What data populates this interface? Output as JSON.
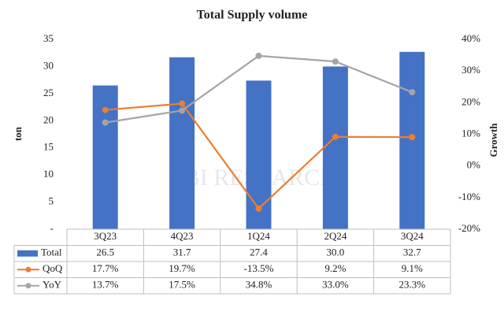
{
  "chart_data": {
    "type": "bar",
    "title": "Total Supply volume",
    "ylabel": "ton",
    "y2label": "Growth",
    "watermark": "UBI RESEARCH",
    "categories": [
      "3Q23",
      "4Q23",
      "1Q24",
      "2Q24",
      "3Q24"
    ],
    "ylim": [
      0,
      35
    ],
    "yticks": [
      {
        "value": 0,
        "label": "-"
      },
      5,
      10,
      15,
      20,
      25,
      30,
      35
    ],
    "y2lim": [
      -20,
      40
    ],
    "y2ticks": [
      {
        "value": -20,
        "label": "-20%"
      },
      {
        "value": -10,
        "label": "-10%"
      },
      {
        "value": 0,
        "label": "0%"
      },
      {
        "value": 10,
        "label": "10%"
      },
      {
        "value": 20,
        "label": "20%"
      },
      {
        "value": 30,
        "label": "30%"
      },
      {
        "value": 40,
        "label": "40%"
      }
    ],
    "series": [
      {
        "name": "Total",
        "type": "bar",
        "color": "#4472c4",
        "values": [
          26.5,
          31.7,
          27.4,
          30.0,
          32.7
        ],
        "value_labels": [
          "26.5",
          "31.7",
          "27.4",
          "30.0",
          "32.7"
        ]
      },
      {
        "name": "QoQ",
        "type": "line",
        "axis": "y2",
        "color": "#ed7d31",
        "values": [
          17.7,
          19.7,
          -13.5,
          9.2,
          9.1
        ],
        "value_labels": [
          "17.7%",
          "19.7%",
          "-13.5%",
          "9.2%",
          "9.1%"
        ]
      },
      {
        "name": "YoY",
        "type": "line",
        "axis": "y2",
        "color": "#a5a5a5",
        "values": [
          13.7,
          17.5,
          34.8,
          33.0,
          23.3
        ],
        "value_labels": [
          "13.7%",
          "17.5%",
          "34.8%",
          "33.0%",
          "23.3%"
        ]
      }
    ]
  }
}
